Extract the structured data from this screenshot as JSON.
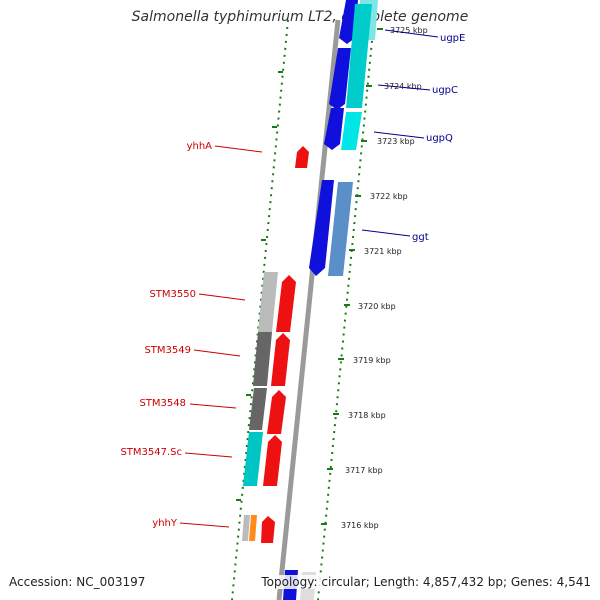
{
  "title": "Salmonella typhimurium LT2, complete genome",
  "accession": "Accession: NC_003197",
  "summary": "Topology: circular; Length: 4,857,432 bp; Genes: 4,541",
  "colors": {
    "reverse_label": "#cc0000",
    "forward_label": "#00008b",
    "axis_ticks": "#1a7a1a",
    "backbone": "#888888"
  },
  "scale_labels": [
    "3725 kbp",
    "3724 kbp",
    "3723 kbp",
    "3722 kbp",
    "3721 kbp",
    "3720 kbp",
    "3719 kbp",
    "3718 kbp",
    "3717 kbp",
    "3716 kbp"
  ],
  "forward_genes": [
    "ugpE",
    "ugpC",
    "ugpQ",
    "ggt"
  ],
  "reverse_genes": [
    "yhhA",
    "STM3550",
    "STM3549",
    "STM3548",
    "STM3547.Sc",
    "yhhY"
  ]
}
